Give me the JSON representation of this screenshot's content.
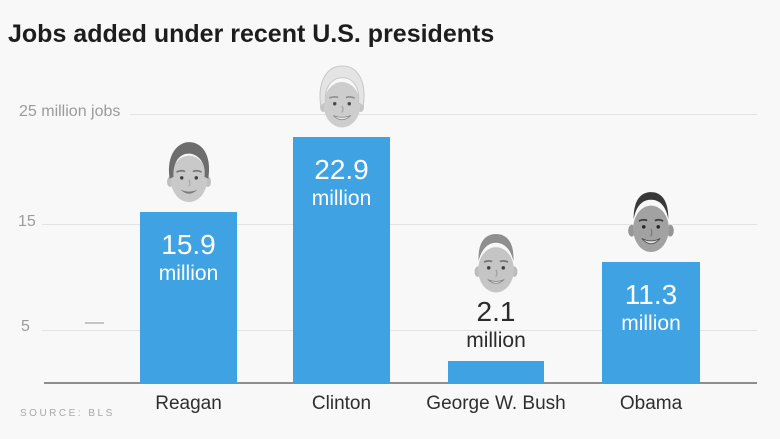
{
  "title": "Jobs added under recent U.S. presidents",
  "source_note": "SOURCE: BLS",
  "colors": {
    "bar_blue": "#3fa3e3",
    "background": "#f8f8f8",
    "gridline": "#e2e2e2",
    "axis_line": "#8e8e8e"
  },
  "y_axis": {
    "top_label": "25 million jobs",
    "tick_mid": "15",
    "tick_low": "5"
  },
  "chart_data": {
    "type": "bar",
    "title": "Jobs added under recent U.S. presidents",
    "xlabel": "",
    "ylabel": "jobs added (millions)",
    "ylim": [
      0,
      25
    ],
    "gridlines_at": [
      5,
      15,
      25
    ],
    "grid": "on",
    "legend": "none",
    "source": "BLS",
    "categories": [
      "Reagan",
      "Clinton",
      "George W. Bush",
      "Obama"
    ],
    "values": [
      15.9,
      22.9,
      2.1,
      11.3
    ],
    "bars": [
      {
        "category": "Reagan",
        "value": 15.9,
        "value_text": "15.9",
        "unit_text": "million",
        "label_placement": "inside"
      },
      {
        "category": "Clinton",
        "value": 22.9,
        "value_text": "22.9",
        "unit_text": "million",
        "label_placement": "inside"
      },
      {
        "category": "George W. Bush",
        "value": 2.1,
        "value_text": "2.1",
        "unit_text": "million",
        "label_placement": "above"
      },
      {
        "category": "Obama",
        "value": 11.3,
        "value_text": "11.3",
        "unit_text": "million",
        "label_placement": "inside"
      }
    ]
  }
}
